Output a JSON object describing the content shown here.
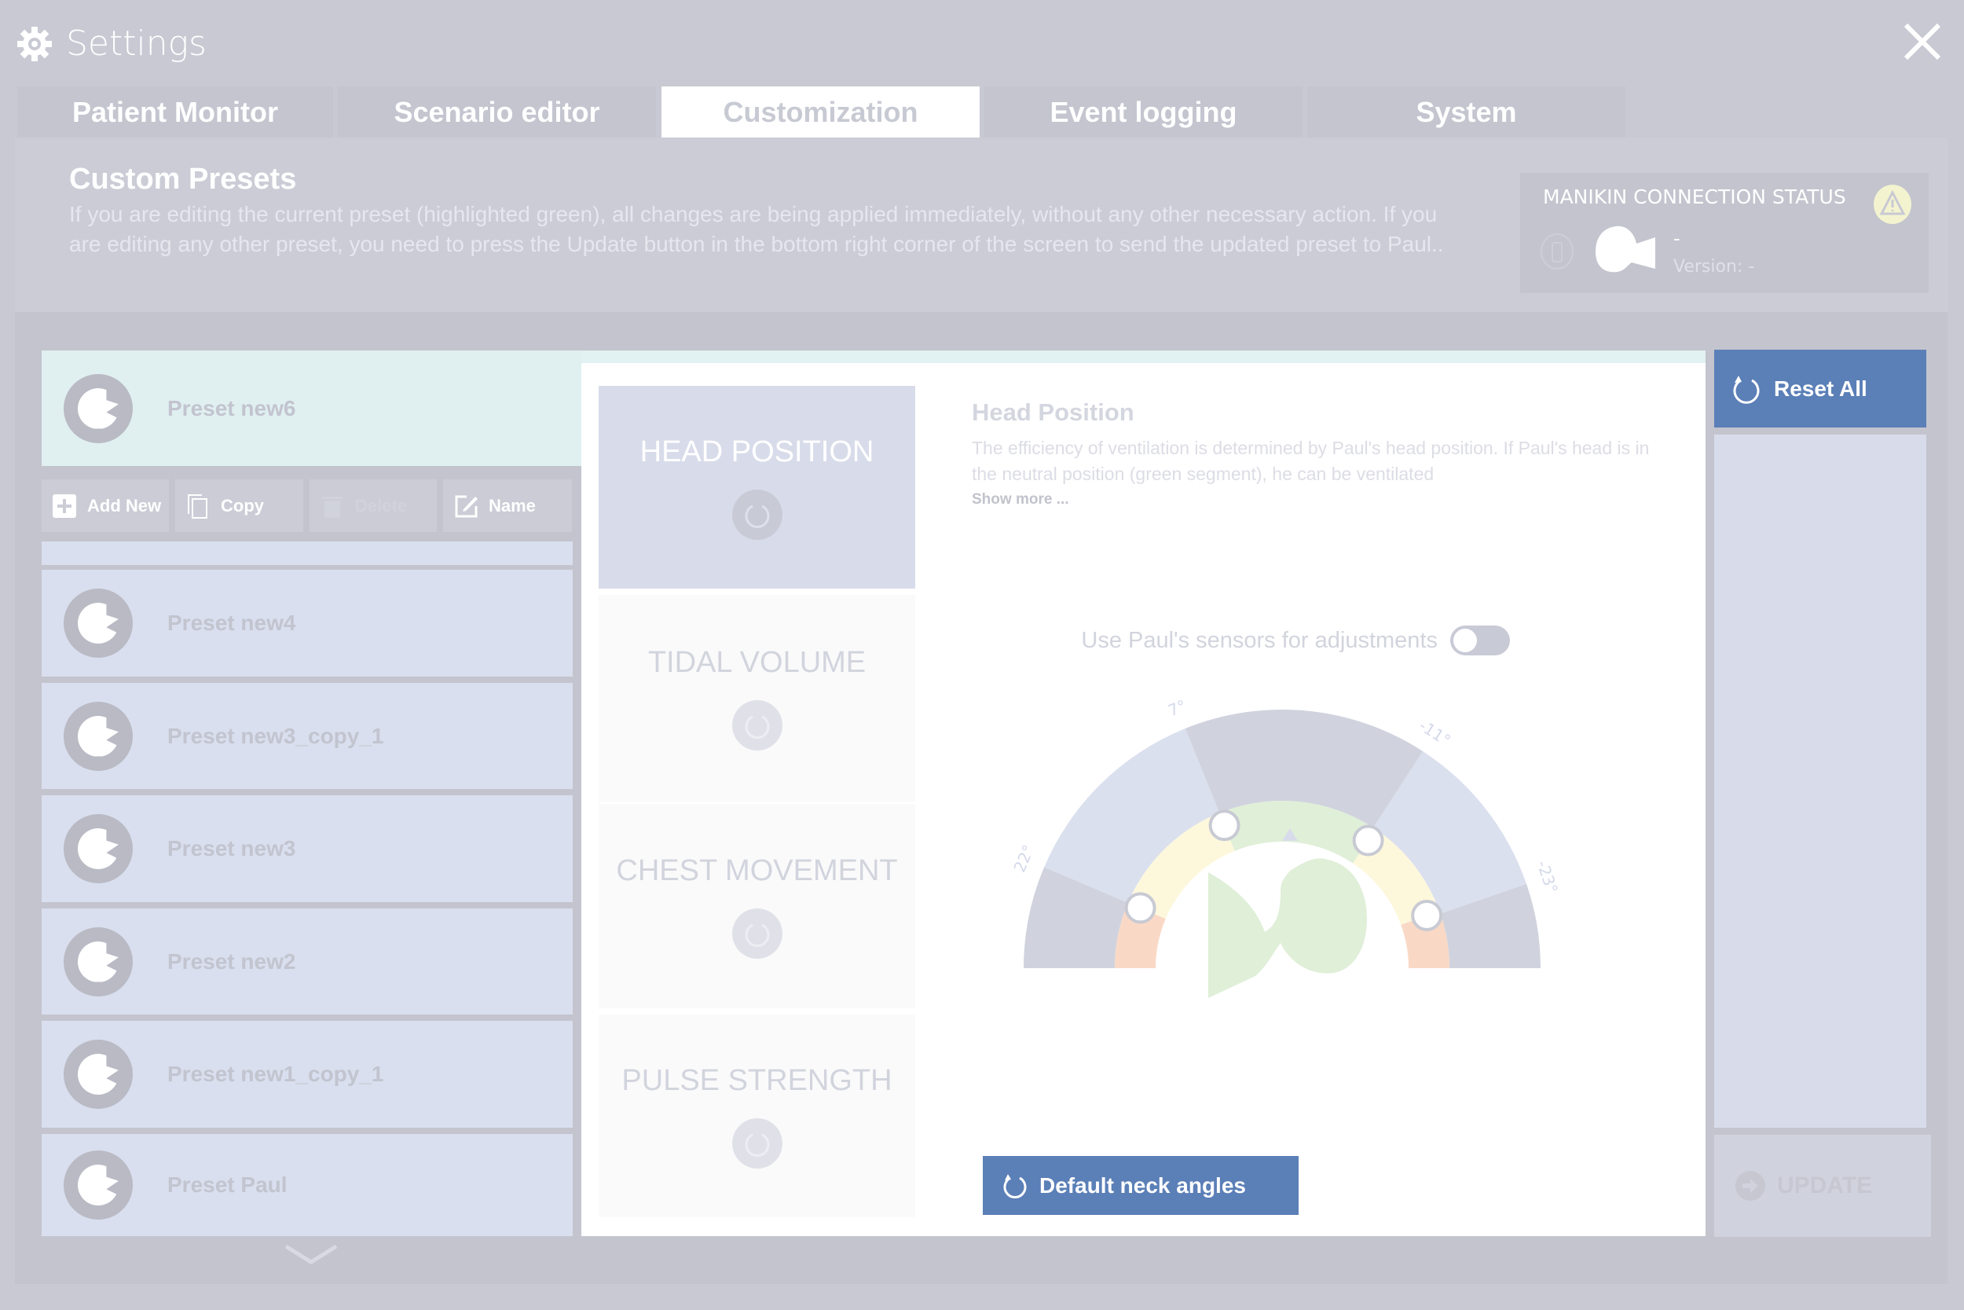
{
  "window": {
    "title": "Settings",
    "icon": "gear-icon",
    "close_icon": "close-icon"
  },
  "tabs": [
    {
      "label": "Patient Monitor"
    },
    {
      "label": "Scenario editor"
    },
    {
      "label": "Customization",
      "active": true
    },
    {
      "label": "Event logging"
    },
    {
      "label": "System"
    }
  ],
  "header": {
    "title": "Custom Presets",
    "description": "If you are editing the current preset (highlighted green), all changes are being applied immediately, without any other necessary action. If you are editing any other preset, you need to press the Update button in the bottom right corner of the screen to send the updated preset to Paul..",
    "status": {
      "title": "MANIKIN CONNECTION STATUS",
      "name": "-",
      "version": "Version: -",
      "warning_icon": "warning-icon",
      "battery_icon": "battery-icon",
      "manikin_icon": "manikin-head-icon"
    }
  },
  "presets": {
    "selected": "Preset new6",
    "toolbar": {
      "add": "Add New",
      "copy": "Copy",
      "delete": "Delete",
      "name": "Name"
    },
    "items": [
      "Preset new4",
      "Preset new3_copy_1",
      "Preset new3",
      "Preset new2",
      "Preset new1_copy_1",
      "Preset Paul"
    ]
  },
  "categories": [
    {
      "label": "HEAD POSITION",
      "active": true
    },
    {
      "label": "TIDAL VOLUME"
    },
    {
      "label": "CHEST MOVEMENT"
    },
    {
      "label": "PULSE STRENGTH"
    }
  ],
  "head_position": {
    "title": "Head Position",
    "description": "The efficiency of ventilation is determined by Paul's head position. If Paul's head is in the neutral position (green segment), he can be ventilated",
    "show_more": "Show more ...",
    "sensor_label": "Use Paul's sensors for adjustments",
    "sensor_toggle": false,
    "angle_labels": [
      "22°",
      "7°",
      "-11°",
      "-23°"
    ],
    "zone_colors": {
      "green": "#e0efd8",
      "yellow": "#fdf8dc",
      "orange": "#f9d9c6"
    },
    "default_button": "Default neck angles"
  },
  "actions": {
    "reset_all": "Reset All",
    "update": "UPDATE"
  },
  "colors": {
    "accent": "#5b7fb7",
    "selected_preset": "#e0f0f0"
  }
}
